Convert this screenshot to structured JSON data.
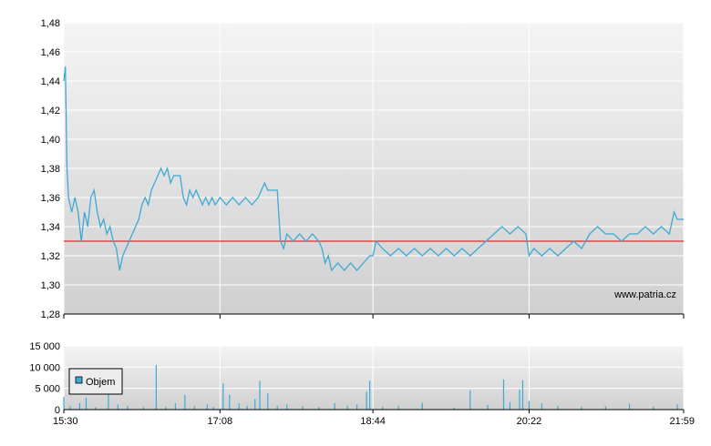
{
  "colors": {
    "line": "#3fa9d5",
    "reference": "#dd0000",
    "volume": "#3fa9d5",
    "grid": "#ffffff",
    "bg_top": "#f4f4f4",
    "bg_bottom": "#d0d0d0",
    "axis": "#000000"
  },
  "watermark": "www.patria.cz",
  "chart_data": [
    {
      "type": "line",
      "title": "",
      "xlabel": "",
      "ylabel": "",
      "x_ticks": [
        "15:30",
        "17:08",
        "18:44",
        "20:22",
        "21:59"
      ],
      "y_ticks": [
        "1,28",
        "1,30",
        "1,32",
        "1,34",
        "1,36",
        "1,38",
        "1,40",
        "1,42",
        "1,44",
        "1,46",
        "1,48"
      ],
      "ylim": [
        1.28,
        1.48
      ],
      "xlim": [
        "15:30",
        "21:59"
      ],
      "reference_line": 1.33,
      "grid": true,
      "series": [
        {
          "points": [
            [
              "15:30",
              1.44
            ],
            [
              "15:31",
              1.45
            ],
            [
              "15:32",
              1.38
            ],
            [
              "15:33",
              1.36
            ],
            [
              "15:35",
              1.35
            ],
            [
              "15:37",
              1.36
            ],
            [
              "15:39",
              1.35
            ],
            [
              "15:41",
              1.33
            ],
            [
              "15:43",
              1.35
            ],
            [
              "15:45",
              1.34
            ],
            [
              "15:47",
              1.36
            ],
            [
              "15:49",
              1.365
            ],
            [
              "15:51",
              1.35
            ],
            [
              "15:53",
              1.34
            ],
            [
              "15:55",
              1.345
            ],
            [
              "15:57",
              1.335
            ],
            [
              "15:59",
              1.34
            ],
            [
              "16:01",
              1.33
            ],
            [
              "16:03",
              1.325
            ],
            [
              "16:05",
              1.31
            ],
            [
              "16:07",
              1.32
            ],
            [
              "16:09",
              1.325
            ],
            [
              "16:11",
              1.33
            ],
            [
              "16:13",
              1.335
            ],
            [
              "16:15",
              1.34
            ],
            [
              "16:17",
              1.345
            ],
            [
              "16:19",
              1.355
            ],
            [
              "16:21",
              1.36
            ],
            [
              "16:23",
              1.355
            ],
            [
              "16:25",
              1.365
            ],
            [
              "16:27",
              1.37
            ],
            [
              "16:29",
              1.375
            ],
            [
              "16:31",
              1.38
            ],
            [
              "16:33",
              1.375
            ],
            [
              "16:35",
              1.38
            ],
            [
              "16:37",
              1.37
            ],
            [
              "16:39",
              1.375
            ],
            [
              "16:41",
              1.375
            ],
            [
              "16:43",
              1.375
            ],
            [
              "16:45",
              1.36
            ],
            [
              "16:47",
              1.355
            ],
            [
              "16:49",
              1.365
            ],
            [
              "16:51",
              1.36
            ],
            [
              "16:53",
              1.365
            ],
            [
              "16:55",
              1.36
            ],
            [
              "16:57",
              1.355
            ],
            [
              "16:59",
              1.36
            ],
            [
              "17:01",
              1.355
            ],
            [
              "17:03",
              1.36
            ],
            [
              "17:05",
              1.355
            ],
            [
              "17:08",
              1.36
            ],
            [
              "17:12",
              1.355
            ],
            [
              "17:16",
              1.36
            ],
            [
              "17:20",
              1.355
            ],
            [
              "17:24",
              1.36
            ],
            [
              "17:28",
              1.355
            ],
            [
              "17:32",
              1.36
            ],
            [
              "17:36",
              1.37
            ],
            [
              "17:38",
              1.365
            ],
            [
              "17:44",
              1.365
            ],
            [
              "17:46",
              1.33
            ],
            [
              "17:48",
              1.325
            ],
            [
              "17:50",
              1.335
            ],
            [
              "17:54",
              1.33
            ],
            [
              "17:58",
              1.335
            ],
            [
              "18:02",
              1.33
            ],
            [
              "18:06",
              1.335
            ],
            [
              "18:10",
              1.33
            ],
            [
              "18:12",
              1.325
            ],
            [
              "18:14",
              1.315
            ],
            [
              "18:16",
              1.32
            ],
            [
              "18:18",
              1.31
            ],
            [
              "18:22",
              1.315
            ],
            [
              "18:26",
              1.31
            ],
            [
              "18:30",
              1.315
            ],
            [
              "18:34",
              1.31
            ],
            [
              "18:38",
              1.315
            ],
            [
              "18:42",
              1.32
            ],
            [
              "18:44",
              1.32
            ],
            [
              "18:46",
              1.33
            ],
            [
              "18:50",
              1.325
            ],
            [
              "18:55",
              1.32
            ],
            [
              "19:00",
              1.325
            ],
            [
              "19:05",
              1.32
            ],
            [
              "19:10",
              1.325
            ],
            [
              "19:15",
              1.32
            ],
            [
              "19:20",
              1.325
            ],
            [
              "19:25",
              1.32
            ],
            [
              "19:30",
              1.325
            ],
            [
              "19:35",
              1.32
            ],
            [
              "19:40",
              1.325
            ],
            [
              "19:45",
              1.32
            ],
            [
              "19:50",
              1.325
            ],
            [
              "19:55",
              1.33
            ],
            [
              "20:00",
              1.335
            ],
            [
              "20:05",
              1.34
            ],
            [
              "20:10",
              1.335
            ],
            [
              "20:15",
              1.34
            ],
            [
              "20:20",
              1.335
            ],
            [
              "20:22",
              1.32
            ],
            [
              "20:25",
              1.325
            ],
            [
              "20:30",
              1.32
            ],
            [
              "20:35",
              1.325
            ],
            [
              "20:40",
              1.32
            ],
            [
              "20:45",
              1.325
            ],
            [
              "20:50",
              1.33
            ],
            [
              "20:55",
              1.325
            ],
            [
              "21:00",
              1.335
            ],
            [
              "21:05",
              1.34
            ],
            [
              "21:10",
              1.335
            ],
            [
              "21:15",
              1.335
            ],
            [
              "21:20",
              1.33
            ],
            [
              "21:25",
              1.335
            ],
            [
              "21:30",
              1.335
            ],
            [
              "21:35",
              1.34
            ],
            [
              "21:40",
              1.335
            ],
            [
              "21:45",
              1.34
            ],
            [
              "21:50",
              1.335
            ],
            [
              "21:53",
              1.35
            ],
            [
              "21:55",
              1.345
            ],
            [
              "21:59",
              1.345
            ]
          ]
        }
      ]
    },
    {
      "type": "bar",
      "title": "",
      "xlabel": "",
      "ylabel": "",
      "x_ticks": [
        "15:30",
        "17:08",
        "18:44",
        "20:22",
        "21:59"
      ],
      "y_ticks": [
        "0",
        "5 000",
        "10 000",
        "15 000"
      ],
      "ylim": [
        0,
        15000
      ],
      "grid": true,
      "legend": {
        "label": "Objem",
        "position": "top-left"
      },
      "series": [
        {
          "name": "Objem",
          "points": [
            [
              "15:30",
              3000
            ],
            [
              "15:34",
              800
            ],
            [
              "15:40",
              1500
            ],
            [
              "15:44",
              2800
            ],
            [
              "15:50",
              600
            ],
            [
              "15:58",
              4200
            ],
            [
              "16:04",
              1200
            ],
            [
              "16:10",
              900
            ],
            [
              "16:20",
              600
            ],
            [
              "16:28",
              10500
            ],
            [
              "16:34",
              700
            ],
            [
              "16:40",
              1500
            ],
            [
              "16:46",
              3500
            ],
            [
              "16:52",
              800
            ],
            [
              "17:00",
              1200
            ],
            [
              "17:04",
              600
            ],
            [
              "17:10",
              6200
            ],
            [
              "17:14",
              3500
            ],
            [
              "17:20",
              1500
            ],
            [
              "17:25",
              900
            ],
            [
              "17:30",
              2500
            ],
            [
              "17:33",
              6800
            ],
            [
              "17:38",
              3800
            ],
            [
              "17:44",
              900
            ],
            [
              "17:50",
              1200
            ],
            [
              "18:00",
              800
            ],
            [
              "18:10",
              600
            ],
            [
              "18:20",
              1500
            ],
            [
              "18:28",
              900
            ],
            [
              "18:34",
              1200
            ],
            [
              "18:40",
              4200
            ],
            [
              "18:42",
              6800
            ],
            [
              "18:50",
              700
            ],
            [
              "19:00",
              900
            ],
            [
              "19:15",
              1600
            ],
            [
              "19:35",
              500
            ],
            [
              "19:45",
              4500
            ],
            [
              "19:56",
              1100
            ],
            [
              "20:06",
              7100
            ],
            [
              "20:10",
              1800
            ],
            [
              "20:16",
              4700
            ],
            [
              "20:18",
              6900
            ],
            [
              "20:22",
              2000
            ],
            [
              "20:30",
              1500
            ],
            [
              "20:40",
              900
            ],
            [
              "20:55",
              700
            ],
            [
              "21:10",
              800
            ],
            [
              "21:25",
              1400
            ],
            [
              "21:40",
              700
            ],
            [
              "21:55",
              1300
            ]
          ]
        }
      ]
    }
  ]
}
